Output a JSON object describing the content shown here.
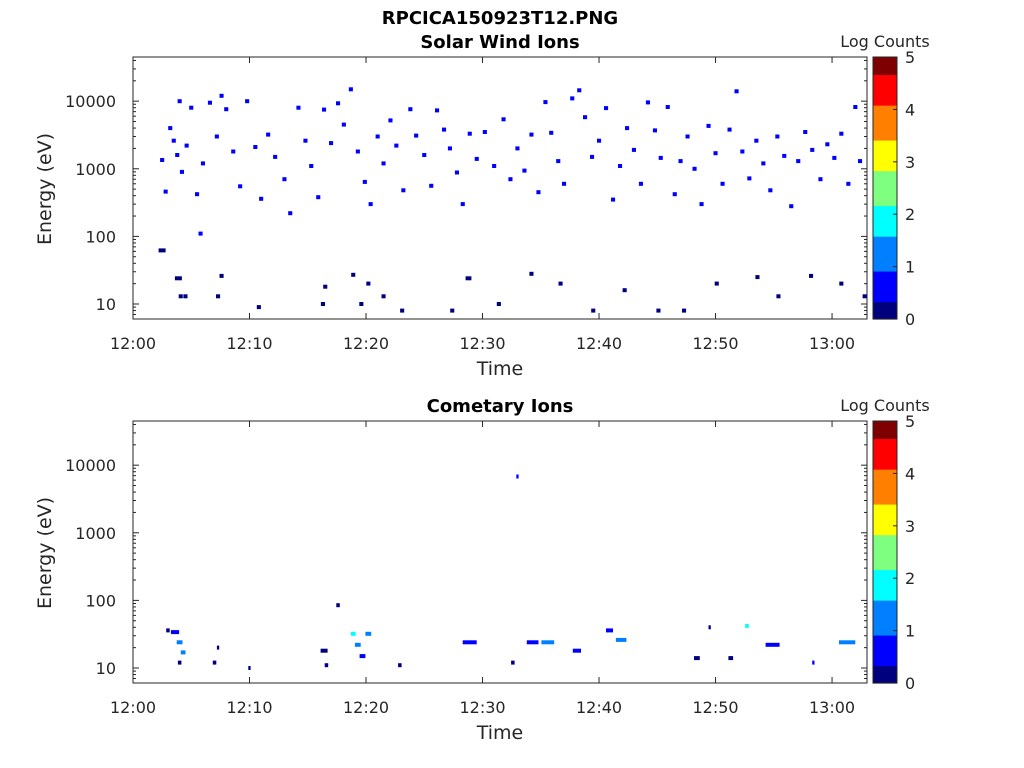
{
  "figure_title": "RPCICA150923T12.PNG",
  "colors": {
    "colormap": [
      "#00007f",
      "#0000ff",
      "#007fff",
      "#00ffff",
      "#7fff7f",
      "#ffff00",
      "#ff7f00",
      "#ff0000",
      "#7f0000"
    ],
    "axes": "#262626"
  },
  "chart_data": [
    {
      "type": "heatmap",
      "title": "Solar Wind Ions",
      "xlabel": "Time",
      "ylabel": "Energy (eV)",
      "colorbar_label": "Log Counts",
      "yscale": "log",
      "ylim": [
        6,
        45000
      ],
      "xlim": [
        "12:00",
        "13:03"
      ],
      "xticks": [
        "12:00",
        "12:10",
        "12:20",
        "12:30",
        "12:40",
        "12:50",
        "13:00"
      ],
      "yticks": [
        "10",
        "100",
        "1000",
        "10000"
      ],
      "colorbar_ticks": [
        "0",
        "1",
        "2",
        "3",
        "4",
        "5"
      ],
      "clim": [
        0,
        5
      ],
      "cells": [
        {
          "t": 2.5,
          "e": 1350,
          "c": 0.4
        },
        {
          "t": 2.8,
          "e": 460,
          "c": 0.4
        },
        {
          "t": 3.2,
          "e": 4000,
          "c": 0.4
        },
        {
          "t": 3.5,
          "e": 2600,
          "c": 0.4
        },
        {
          "t": 3.8,
          "e": 1600,
          "c": 0.4
        },
        {
          "t": 4.0,
          "e": 10000,
          "c": 0.4
        },
        {
          "t": 4.2,
          "e": 900,
          "c": 0.4
        },
        {
          "t": 4.6,
          "e": 2200,
          "c": 0.4
        },
        {
          "t": 5.0,
          "e": 8000,
          "c": 0.4
        },
        {
          "t": 5.5,
          "e": 420,
          "c": 0.4
        },
        {
          "t": 5.8,
          "e": 110,
          "c": 0.4
        },
        {
          "t": 6.0,
          "e": 1200,
          "c": 0.4
        },
        {
          "t": 6.6,
          "e": 9500,
          "c": 0.4
        },
        {
          "t": 7.2,
          "e": 3000,
          "c": 0.4
        },
        {
          "t": 7.6,
          "e": 12000,
          "c": 0.4
        },
        {
          "t": 8.0,
          "e": 7600,
          "c": 0.4
        },
        {
          "t": 8.6,
          "e": 1800,
          "c": 0.4
        },
        {
          "t": 9.2,
          "e": 550,
          "c": 0.4
        },
        {
          "t": 9.8,
          "e": 10000,
          "c": 0.4
        },
        {
          "t": 10.5,
          "e": 2100,
          "c": 0.4
        },
        {
          "t": 11.0,
          "e": 360,
          "c": 0.4
        },
        {
          "t": 11.6,
          "e": 3200,
          "c": 0.4
        },
        {
          "t": 12.2,
          "e": 1500,
          "c": 0.4
        },
        {
          "t": 13.0,
          "e": 700,
          "c": 0.4
        },
        {
          "t": 13.5,
          "e": 220,
          "c": 0.4
        },
        {
          "t": 14.2,
          "e": 8000,
          "c": 0.4
        },
        {
          "t": 14.8,
          "e": 2600,
          "c": 0.4
        },
        {
          "t": 15.3,
          "e": 1100,
          "c": 0.4
        },
        {
          "t": 15.9,
          "e": 380,
          "c": 0.4
        },
        {
          "t": 16.4,
          "e": 7500,
          "c": 0.4
        },
        {
          "t": 17.0,
          "e": 2400,
          "c": 0.4
        },
        {
          "t": 17.6,
          "e": 9300,
          "c": 0.4
        },
        {
          "t": 18.1,
          "e": 4500,
          "c": 0.4
        },
        {
          "t": 18.7,
          "e": 15000,
          "c": 0.4
        },
        {
          "t": 19.3,
          "e": 1800,
          "c": 0.4
        },
        {
          "t": 19.9,
          "e": 640,
          "c": 0.4
        },
        {
          "t": 20.4,
          "e": 300,
          "c": 0.4
        },
        {
          "t": 21.0,
          "e": 3000,
          "c": 0.4
        },
        {
          "t": 21.5,
          "e": 1200,
          "c": 0.4
        },
        {
          "t": 22.1,
          "e": 5200,
          "c": 0.4
        },
        {
          "t": 22.6,
          "e": 2200,
          "c": 0.4
        },
        {
          "t": 23.2,
          "e": 480,
          "c": 0.4
        },
        {
          "t": 23.8,
          "e": 7600,
          "c": 0.4
        },
        {
          "t": 24.3,
          "e": 3100,
          "c": 0.4
        },
        {
          "t": 25.0,
          "e": 1600,
          "c": 0.4
        },
        {
          "t": 25.6,
          "e": 560,
          "c": 0.4
        },
        {
          "t": 26.1,
          "e": 7300,
          "c": 0.4
        },
        {
          "t": 26.7,
          "e": 3800,
          "c": 0.4
        },
        {
          "t": 27.2,
          "e": 2000,
          "c": 0.4
        },
        {
          "t": 27.8,
          "e": 880,
          "c": 0.4
        },
        {
          "t": 28.3,
          "e": 300,
          "c": 0.4
        },
        {
          "t": 28.9,
          "e": 3300,
          "c": 0.4
        },
        {
          "t": 29.5,
          "e": 1400,
          "c": 0.4
        },
        {
          "t": 30.2,
          "e": 3500,
          "c": 0.4
        },
        {
          "t": 31.0,
          "e": 1100,
          "c": 0.4
        },
        {
          "t": 31.8,
          "e": 5400,
          "c": 0.4
        },
        {
          "t": 32.4,
          "e": 700,
          "c": 0.4
        },
        {
          "t": 33.0,
          "e": 2000,
          "c": 0.4
        },
        {
          "t": 33.6,
          "e": 940,
          "c": 0.4
        },
        {
          "t": 34.2,
          "e": 3200,
          "c": 0.4
        },
        {
          "t": 34.8,
          "e": 450,
          "c": 0.4
        },
        {
          "t": 35.4,
          "e": 9700,
          "c": 0.4
        },
        {
          "t": 35.9,
          "e": 3400,
          "c": 0.4
        },
        {
          "t": 36.5,
          "e": 1300,
          "c": 0.4
        },
        {
          "t": 37.0,
          "e": 600,
          "c": 0.4
        },
        {
          "t": 37.7,
          "e": 11000,
          "c": 0.4
        },
        {
          "t": 38.3,
          "e": 14500,
          "c": 0.4
        },
        {
          "t": 38.8,
          "e": 5800,
          "c": 0.4
        },
        {
          "t": 39.4,
          "e": 1500,
          "c": 0.4
        },
        {
          "t": 40.0,
          "e": 2600,
          "c": 0.4
        },
        {
          "t": 40.6,
          "e": 7900,
          "c": 0.4
        },
        {
          "t": 41.2,
          "e": 350,
          "c": 0.4
        },
        {
          "t": 41.8,
          "e": 1100,
          "c": 0.4
        },
        {
          "t": 42.4,
          "e": 4000,
          "c": 0.4
        },
        {
          "t": 43.0,
          "e": 1900,
          "c": 0.4
        },
        {
          "t": 43.6,
          "e": 600,
          "c": 0.4
        },
        {
          "t": 44.2,
          "e": 9600,
          "c": 0.4
        },
        {
          "t": 44.8,
          "e": 3700,
          "c": 0.4
        },
        {
          "t": 45.3,
          "e": 1450,
          "c": 0.4
        },
        {
          "t": 45.9,
          "e": 8200,
          "c": 0.4
        },
        {
          "t": 46.5,
          "e": 420,
          "c": 0.4
        },
        {
          "t": 47.0,
          "e": 1300,
          "c": 0.4
        },
        {
          "t": 47.6,
          "e": 3000,
          "c": 0.4
        },
        {
          "t": 48.2,
          "e": 1000,
          "c": 0.4
        },
        {
          "t": 48.8,
          "e": 300,
          "c": 0.4
        },
        {
          "t": 49.4,
          "e": 4300,
          "c": 0.4
        },
        {
          "t": 50.0,
          "e": 1700,
          "c": 0.4
        },
        {
          "t": 50.6,
          "e": 600,
          "c": 0.4
        },
        {
          "t": 51.2,
          "e": 3800,
          "c": 0.4
        },
        {
          "t": 51.8,
          "e": 14000,
          "c": 0.4
        },
        {
          "t": 52.3,
          "e": 1800,
          "c": 0.4
        },
        {
          "t": 52.9,
          "e": 720,
          "c": 0.4
        },
        {
          "t": 53.5,
          "e": 2600,
          "c": 0.4
        },
        {
          "t": 54.1,
          "e": 1200,
          "c": 0.4
        },
        {
          "t": 54.7,
          "e": 480,
          "c": 0.4
        },
        {
          "t": 55.3,
          "e": 3000,
          "c": 0.4
        },
        {
          "t": 55.9,
          "e": 1550,
          "c": 0.4
        },
        {
          "t": 56.5,
          "e": 280,
          "c": 0.4
        },
        {
          "t": 57.1,
          "e": 1300,
          "c": 0.4
        },
        {
          "t": 57.7,
          "e": 3500,
          "c": 0.4
        },
        {
          "t": 58.3,
          "e": 1900,
          "c": 0.4
        },
        {
          "t": 59.0,
          "e": 700,
          "c": 0.4
        },
        {
          "t": 59.6,
          "e": 2300,
          "c": 0.4
        },
        {
          "t": 60.2,
          "e": 1450,
          "c": 0.4
        },
        {
          "t": 60.8,
          "e": 3300,
          "c": 0.4
        },
        {
          "t": 61.4,
          "e": 600,
          "c": 0.4
        },
        {
          "t": 62.0,
          "e": 8200,
          "c": 0.4
        },
        {
          "t": 62.4,
          "e": 1300,
          "c": 0.4
        },
        {
          "t": 2.5,
          "e": 62,
          "c": 0.1,
          "w": 0.6
        },
        {
          "t": 3.9,
          "e": 24,
          "c": 0.1,
          "w": 0.6
        },
        {
          "t": 4.1,
          "e": 13,
          "c": 0.1
        },
        {
          "t": 4.5,
          "e": 13,
          "c": 0.1
        },
        {
          "t": 7.3,
          "e": 13,
          "c": 0.1
        },
        {
          "t": 7.6,
          "e": 26,
          "c": 0.1
        },
        {
          "t": 10.8,
          "e": 9,
          "c": 0.1
        },
        {
          "t": 16.3,
          "e": 10,
          "c": 0.1
        },
        {
          "t": 16.5,
          "e": 18,
          "c": 0.1
        },
        {
          "t": 18.9,
          "e": 27,
          "c": 0.1
        },
        {
          "t": 19.6,
          "e": 10,
          "c": 0.1
        },
        {
          "t": 20.2,
          "e": 20,
          "c": 0.1
        },
        {
          "t": 21.5,
          "e": 13,
          "c": 0.1
        },
        {
          "t": 23.1,
          "e": 8,
          "c": 0.1
        },
        {
          "t": 27.4,
          "e": 8,
          "c": 0.1
        },
        {
          "t": 28.8,
          "e": 24,
          "c": 0.1,
          "w": 0.5
        },
        {
          "t": 31.4,
          "e": 10,
          "c": 0.1
        },
        {
          "t": 34.2,
          "e": 28,
          "c": 0.1
        },
        {
          "t": 36.7,
          "e": 20,
          "c": 0.1
        },
        {
          "t": 39.5,
          "e": 8,
          "c": 0.1
        },
        {
          "t": 42.2,
          "e": 16,
          "c": 0.1
        },
        {
          "t": 45.1,
          "e": 8,
          "c": 0.1
        },
        {
          "t": 47.3,
          "e": 8,
          "c": 0.1
        },
        {
          "t": 50.1,
          "e": 20,
          "c": 0.1
        },
        {
          "t": 53.6,
          "e": 25,
          "c": 0.1
        },
        {
          "t": 55.4,
          "e": 13,
          "c": 0.1
        },
        {
          "t": 58.2,
          "e": 26,
          "c": 0.1
        },
        {
          "t": 60.8,
          "e": 20,
          "c": 0.1
        },
        {
          "t": 62.8,
          "e": 13,
          "c": 0.1
        }
      ]
    },
    {
      "type": "heatmap",
      "title": "Cometary Ions",
      "xlabel": "Time",
      "ylabel": "Energy (eV)",
      "colorbar_label": "Log Counts",
      "yscale": "log",
      "ylim": [
        6,
        45000
      ],
      "xlim": [
        "12:00",
        "13:03"
      ],
      "xticks": [
        "12:00",
        "12:10",
        "12:20",
        "12:30",
        "12:40",
        "12:50",
        "13:00"
      ],
      "yticks": [
        "10",
        "100",
        "1000",
        "10000"
      ],
      "colorbar_ticks": [
        "0",
        "1",
        "2",
        "3",
        "4",
        "5"
      ],
      "clim": [
        0,
        5
      ],
      "cells": [
        {
          "t": 3.0,
          "e": 36,
          "c": 0.3,
          "w": 0.3
        },
        {
          "t": 3.6,
          "e": 34,
          "c": 0.6,
          "w": 0.7
        },
        {
          "t": 4.0,
          "e": 24,
          "c": 1.5,
          "w": 0.5
        },
        {
          "t": 4.3,
          "e": 17,
          "c": 1.2,
          "w": 0.4
        },
        {
          "t": 4.0,
          "e": 12,
          "c": 0.2,
          "w": 0.3
        },
        {
          "t": 7.0,
          "e": 12,
          "c": 0.2,
          "w": 0.3
        },
        {
          "t": 7.3,
          "e": 20,
          "c": 0.2,
          "w": 0.2
        },
        {
          "t": 10.0,
          "e": 10,
          "c": 0.2,
          "w": 0.2
        },
        {
          "t": 16.4,
          "e": 18,
          "c": 0.3,
          "w": 0.6
        },
        {
          "t": 16.6,
          "e": 11,
          "c": 0.2,
          "w": 0.3
        },
        {
          "t": 17.6,
          "e": 85,
          "c": 0.3,
          "w": 0.3
        },
        {
          "t": 18.9,
          "e": 32,
          "c": 1.6,
          "w": 0.4
        },
        {
          "t": 19.3,
          "e": 22,
          "c": 1.1,
          "w": 0.5
        },
        {
          "t": 19.7,
          "e": 15,
          "c": 0.8,
          "w": 0.5
        },
        {
          "t": 20.2,
          "e": 32,
          "c": 1.3,
          "w": 0.5
        },
        {
          "t": 22.9,
          "e": 11,
          "c": 0.2,
          "w": 0.3
        },
        {
          "t": 28.9,
          "e": 24,
          "c": 0.8,
          "w": 1.2
        },
        {
          "t": 33.0,
          "e": 6800,
          "c": 0.5,
          "w": 0.2
        },
        {
          "t": 32.6,
          "e": 12,
          "c": 0.2,
          "w": 0.3
        },
        {
          "t": 34.3,
          "e": 24,
          "c": 0.9,
          "w": 1.0
        },
        {
          "t": 35.6,
          "e": 24,
          "c": 1.2,
          "w": 1.1
        },
        {
          "t": 38.1,
          "e": 18,
          "c": 0.5,
          "w": 0.7
        },
        {
          "t": 40.9,
          "e": 36,
          "c": 0.6,
          "w": 0.6
        },
        {
          "t": 41.9,
          "e": 26,
          "c": 1.5,
          "w": 0.9
        },
        {
          "t": 48.4,
          "e": 14,
          "c": 0.2,
          "w": 0.5
        },
        {
          "t": 49.5,
          "e": 40,
          "c": 0.3,
          "w": 0.2
        },
        {
          "t": 51.3,
          "e": 14,
          "c": 0.2,
          "w": 0.4
        },
        {
          "t": 52.7,
          "e": 42,
          "c": 1.6,
          "w": 0.3
        },
        {
          "t": 54.9,
          "e": 22,
          "c": 0.7,
          "w": 1.2
        },
        {
          "t": 58.4,
          "e": 12,
          "c": 0.5,
          "w": 0.2
        },
        {
          "t": 61.3,
          "e": 24,
          "c": 1.1,
          "w": 1.4
        }
      ]
    }
  ]
}
